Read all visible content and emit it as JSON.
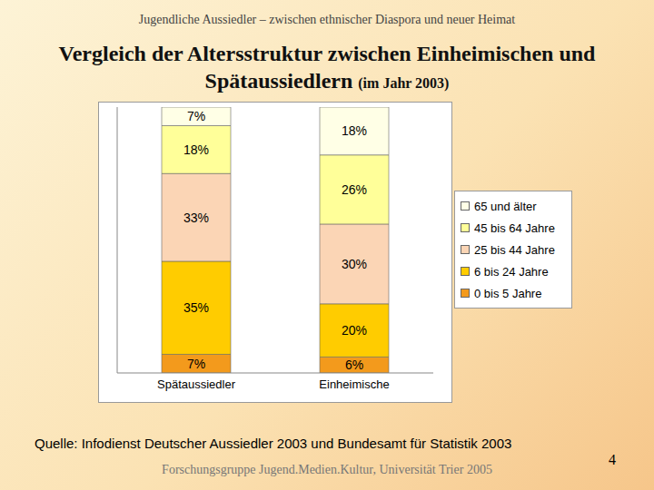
{
  "chart_data": {
    "type": "bar",
    "stacked": true,
    "title": "Vergleich der Altersstruktur zwischen Einheimischen und Spätaussiedlern",
    "subtitle": "(im Jahr 2003)",
    "annotations": {
      "header": "Jugendliche Aussiedler – zwischen ethnischer Diaspora und neuer Heimat",
      "source": "Quelle: Infodienst Deutscher Aussiedler 2003 und Bundesamt für Statistik 2003",
      "footer": "Forschungsgruppe Jugend.Medien.Kultur, Universität Trier 2005",
      "page_number": "4"
    },
    "categories": [
      "Spätaussiedler",
      "Einheimische"
    ],
    "series": [
      {
        "name": "0 bis 5 Jahre",
        "color": "#f39a1c",
        "values": [
          7,
          6
        ],
        "value_labels": [
          "7%",
          "6%"
        ]
      },
      {
        "name": "6 bis 24 Jahre",
        "color": "#ffcc00",
        "values": [
          35,
          20
        ],
        "value_labels": [
          "35%",
          "20%"
        ]
      },
      {
        "name": "25 bis 44 Jahre",
        "color": "#fbd5b5",
        "values": [
          33,
          30
        ],
        "value_labels": [
          "33%",
          "30%"
        ]
      },
      {
        "name": "45 bis 64 Jahre",
        "color": "#ffff99",
        "values": [
          18,
          26
        ],
        "value_labels": [
          "18%",
          "26%"
        ]
      },
      {
        "name": "65 und älter",
        "color": "#ffffe6",
        "values": [
          7,
          18
        ],
        "value_labels": [
          "7%",
          "18%"
        ]
      }
    ],
    "ylim": [
      0,
      100
    ],
    "yticks": [],
    "tick_labels": "x",
    "grid": false,
    "legend": "right",
    "data_labels": true
  }
}
